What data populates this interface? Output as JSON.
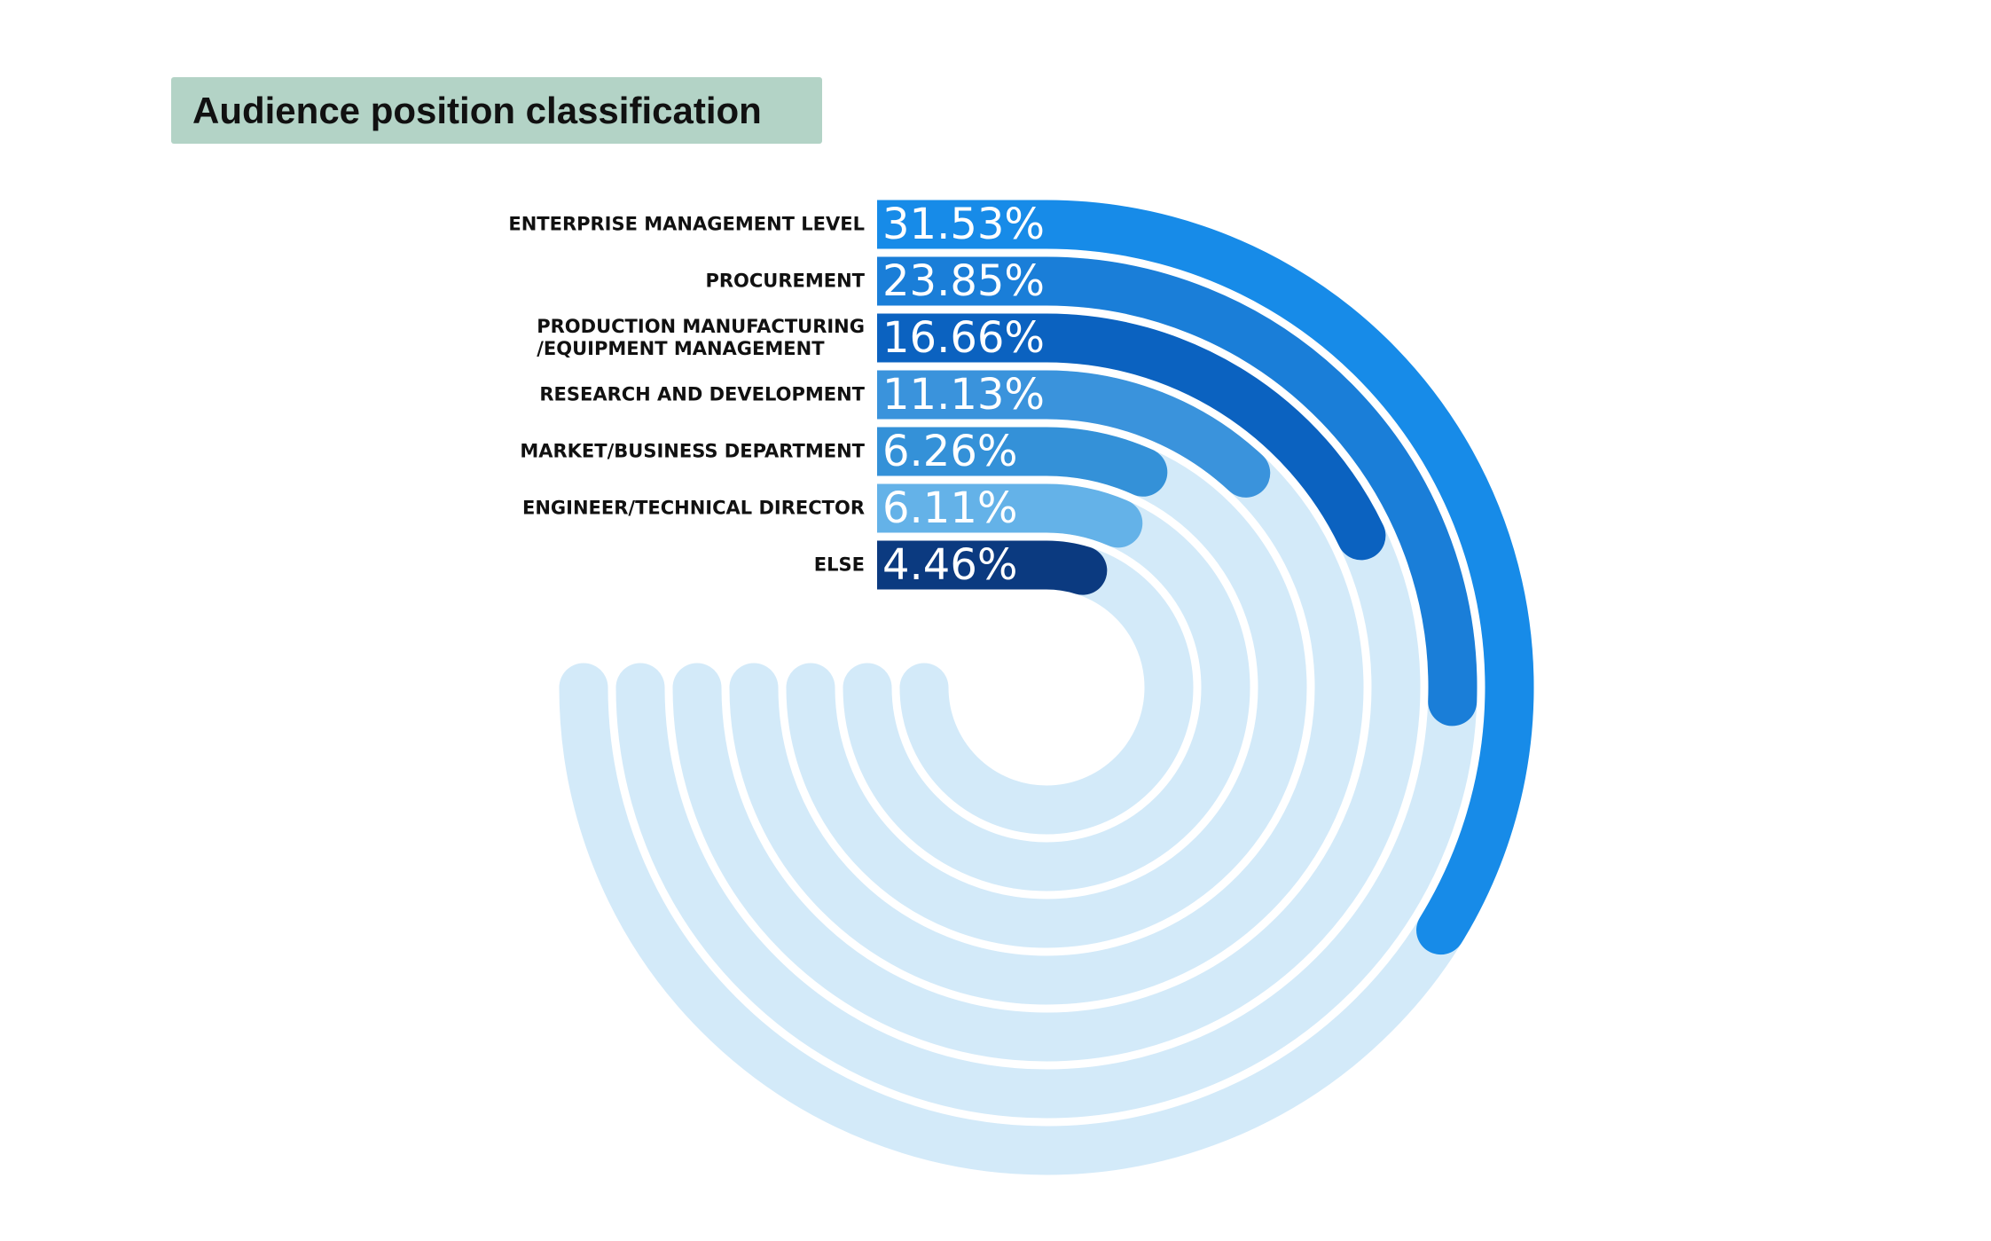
{
  "chart_data": {
    "type": "radial_bar",
    "title": "Audience position classification",
    "categories": [
      "ENTERPRISE MANAGEMENT LEVEL",
      "PROCUREMENT",
      "PRODUCTION MANUFACTURING\n/EQUIPMENT MANAGEMENT",
      "RESEARCH AND DEVELOPMENT",
      "MARKET/BUSINESS DEPARTMENT",
      "ENGINEER/TECHNICAL DIRECTOR",
      "ELSE"
    ],
    "values": [
      31.53,
      23.85,
      16.66,
      11.13,
      6.26,
      6.11,
      4.46
    ],
    "value_labels": [
      "31.53%",
      "23.85%",
      "16.66%",
      "11.13%",
      "6.26%",
      "6.11%",
      "4.46%"
    ],
    "colors": [
      "#178be8",
      "#1a7ed8",
      "#0b62c0",
      "#3a93dc",
      "#3491d8",
      "#64b2e8",
      "#0b3a80"
    ],
    "track_color": "#d3eaf9",
    "vlim": [
      0,
      70
    ]
  }
}
